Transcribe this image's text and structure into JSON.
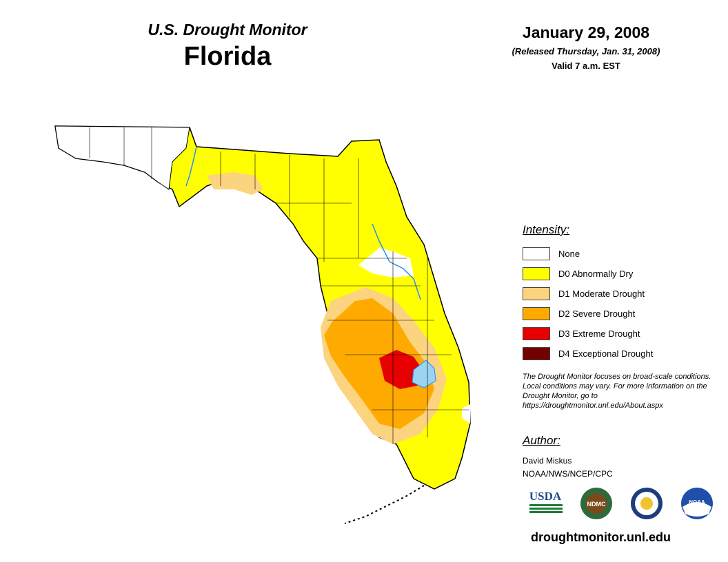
{
  "header": {
    "subtitle": "U.S. Drought Monitor",
    "state": "Florida",
    "date": "January 29, 2008",
    "released": "(Released Thursday, Jan. 31, 2008)",
    "valid": "Valid 7 a.m. EST"
  },
  "legend": {
    "heading": "Intensity:",
    "items": [
      {
        "label": "None",
        "color": "#ffffff"
      },
      {
        "label": "D0 Abnormally Dry",
        "color": "#ffff00"
      },
      {
        "label": "D1 Moderate Drought",
        "color": "#fcd37f"
      },
      {
        "label": "D2 Severe Drought",
        "color": "#ffaa00"
      },
      {
        "label": "D3 Extreme Drought",
        "color": "#e60000"
      },
      {
        "label": "D4 Exceptional Drought",
        "color": "#730000"
      }
    ]
  },
  "note": "The Drought Monitor focuses on broad-scale conditions. Local conditions may vary. For more information on the Drought Monitor, go to https://droughtmonitor.unl.edu/About.aspx",
  "author": {
    "heading": "Author:",
    "name": "David Miskus",
    "org": "NOAA/NWS/NCEP/CPC"
  },
  "logos": [
    {
      "name": "usda-logo",
      "text": "USDA"
    },
    {
      "name": "ndmc-logo",
      "text": "NDMC"
    },
    {
      "name": "commerce-logo",
      "text": ""
    },
    {
      "name": "noaa-logo",
      "text": "NOAA"
    }
  ],
  "footer": "droughtmonitor.unl.edu",
  "colors": {
    "water": "#9ad4f0",
    "river": "#1e90ff",
    "border": "#000000"
  }
}
